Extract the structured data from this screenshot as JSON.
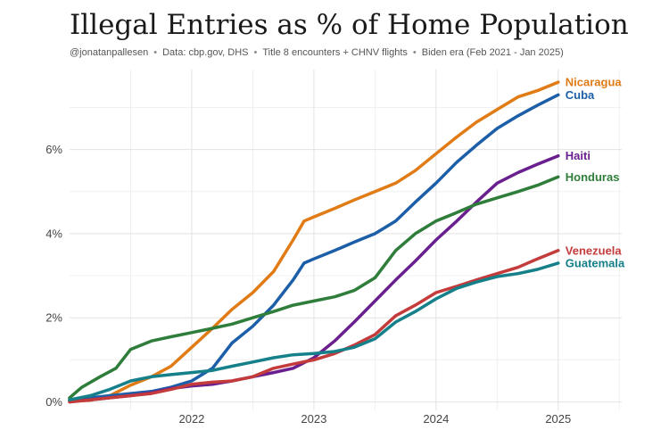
{
  "title": "Illegal Entries as % of Home Population",
  "subtitle": {
    "author": "@jonatanpallesen",
    "source": "Data: cbp.gov, DHS",
    "method": "Title 8 encounters + CHNV flights",
    "period": "Biden era (Feb 2021 - Jan 2025)"
  },
  "chart_data": {
    "type": "line",
    "xlim": [
      2021.0,
      2025.52
    ],
    "ylim": [
      -0.2,
      7.9
    ],
    "x_ticks": [
      {
        "value": 2022.0,
        "label": "2022"
      },
      {
        "value": 2023.0,
        "label": "2023"
      },
      {
        "value": 2024.0,
        "label": "2024"
      },
      {
        "value": 2025.0,
        "label": "2025"
      }
    ],
    "y_ticks": [
      {
        "value": 0,
        "label": "0%"
      },
      {
        "value": 2,
        "label": "2%"
      },
      {
        "value": 4,
        "label": "4%"
      },
      {
        "value": 6,
        "label": "6%"
      }
    ],
    "grid": true,
    "legend": "end-of-line labels",
    "series": [
      {
        "name": "Nicaragua",
        "color": "#e07b16",
        "points": [
          [
            2021.0,
            0.02
          ],
          [
            2021.17,
            0.04
          ],
          [
            2021.33,
            0.15
          ],
          [
            2021.5,
            0.4
          ],
          [
            2021.67,
            0.6
          ],
          [
            2021.83,
            0.85
          ],
          [
            2022.0,
            1.3
          ],
          [
            2022.17,
            1.75
          ],
          [
            2022.33,
            2.2
          ],
          [
            2022.5,
            2.6
          ],
          [
            2022.67,
            3.1
          ],
          [
            2022.83,
            3.85
          ],
          [
            2022.92,
            4.3
          ],
          [
            2023.0,
            4.4
          ],
          [
            2023.17,
            4.6
          ],
          [
            2023.33,
            4.8
          ],
          [
            2023.5,
            5.0
          ],
          [
            2023.67,
            5.2
          ],
          [
            2023.83,
            5.5
          ],
          [
            2024.0,
            5.9
          ],
          [
            2024.17,
            6.3
          ],
          [
            2024.33,
            6.65
          ],
          [
            2024.5,
            6.95
          ],
          [
            2024.67,
            7.25
          ],
          [
            2024.83,
            7.4
          ],
          [
            2025.0,
            7.6
          ]
        ]
      },
      {
        "name": "Cuba",
        "color": "#1c5fa8",
        "points": [
          [
            2021.0,
            0.05
          ],
          [
            2021.17,
            0.1
          ],
          [
            2021.33,
            0.15
          ],
          [
            2021.5,
            0.2
          ],
          [
            2021.67,
            0.25
          ],
          [
            2021.83,
            0.35
          ],
          [
            2022.0,
            0.5
          ],
          [
            2022.17,
            0.8
          ],
          [
            2022.33,
            1.4
          ],
          [
            2022.5,
            1.8
          ],
          [
            2022.67,
            2.3
          ],
          [
            2022.83,
            2.9
          ],
          [
            2022.92,
            3.3
          ],
          [
            2023.0,
            3.4
          ],
          [
            2023.17,
            3.6
          ],
          [
            2023.33,
            3.8
          ],
          [
            2023.5,
            4.0
          ],
          [
            2023.67,
            4.3
          ],
          [
            2023.83,
            4.75
          ],
          [
            2024.0,
            5.2
          ],
          [
            2024.17,
            5.7
          ],
          [
            2024.33,
            6.1
          ],
          [
            2024.5,
            6.5
          ],
          [
            2024.67,
            6.8
          ],
          [
            2024.83,
            7.05
          ],
          [
            2025.0,
            7.3
          ]
        ]
      },
      {
        "name": "Haiti",
        "color": "#6a1f8f",
        "points": [
          [
            2021.0,
            0.02
          ],
          [
            2021.17,
            0.05
          ],
          [
            2021.33,
            0.1
          ],
          [
            2021.5,
            0.15
          ],
          [
            2021.67,
            0.22
          ],
          [
            2021.83,
            0.32
          ],
          [
            2022.0,
            0.38
          ],
          [
            2022.17,
            0.42
          ],
          [
            2022.33,
            0.5
          ],
          [
            2022.5,
            0.6
          ],
          [
            2022.67,
            0.7
          ],
          [
            2022.83,
            0.8
          ],
          [
            2023.0,
            1.05
          ],
          [
            2023.17,
            1.45
          ],
          [
            2023.33,
            1.9
          ],
          [
            2023.5,
            2.4
          ],
          [
            2023.67,
            2.9
          ],
          [
            2023.83,
            3.35
          ],
          [
            2024.0,
            3.85
          ],
          [
            2024.17,
            4.3
          ],
          [
            2024.33,
            4.75
          ],
          [
            2024.5,
            5.2
          ],
          [
            2024.67,
            5.45
          ],
          [
            2024.83,
            5.65
          ],
          [
            2025.0,
            5.85
          ]
        ]
      },
      {
        "name": "Honduras",
        "color": "#2f7d3a",
        "points": [
          [
            2021.0,
            0.1
          ],
          [
            2021.1,
            0.35
          ],
          [
            2021.25,
            0.6
          ],
          [
            2021.38,
            0.8
          ],
          [
            2021.5,
            1.25
          ],
          [
            2021.67,
            1.45
          ],
          [
            2021.83,
            1.55
          ],
          [
            2022.0,
            1.65
          ],
          [
            2022.17,
            1.75
          ],
          [
            2022.33,
            1.85
          ],
          [
            2022.5,
            2.0
          ],
          [
            2022.67,
            2.15
          ],
          [
            2022.83,
            2.3
          ],
          [
            2023.0,
            2.4
          ],
          [
            2023.17,
            2.5
          ],
          [
            2023.33,
            2.65
          ],
          [
            2023.5,
            2.95
          ],
          [
            2023.67,
            3.6
          ],
          [
            2023.83,
            4.0
          ],
          [
            2024.0,
            4.3
          ],
          [
            2024.17,
            4.5
          ],
          [
            2024.33,
            4.7
          ],
          [
            2024.5,
            4.85
          ],
          [
            2024.67,
            5.0
          ],
          [
            2024.83,
            5.15
          ],
          [
            2025.0,
            5.35
          ]
        ]
      },
      {
        "name": "Venezuela",
        "color": "#c33b3b",
        "points": [
          [
            2021.0,
            0.0
          ],
          [
            2021.17,
            0.05
          ],
          [
            2021.33,
            0.1
          ],
          [
            2021.5,
            0.15
          ],
          [
            2021.67,
            0.2
          ],
          [
            2021.83,
            0.3
          ],
          [
            2022.0,
            0.42
          ],
          [
            2022.17,
            0.47
          ],
          [
            2022.33,
            0.5
          ],
          [
            2022.5,
            0.6
          ],
          [
            2022.67,
            0.8
          ],
          [
            2022.83,
            0.9
          ],
          [
            2023.0,
            1.0
          ],
          [
            2023.17,
            1.15
          ],
          [
            2023.33,
            1.35
          ],
          [
            2023.5,
            1.6
          ],
          [
            2023.67,
            2.05
          ],
          [
            2023.83,
            2.3
          ],
          [
            2024.0,
            2.6
          ],
          [
            2024.17,
            2.75
          ],
          [
            2024.33,
            2.9
          ],
          [
            2024.5,
            3.05
          ],
          [
            2024.67,
            3.2
          ],
          [
            2024.83,
            3.4
          ],
          [
            2025.0,
            3.6
          ]
        ]
      },
      {
        "name": "Guatemala",
        "color": "#16808a",
        "points": [
          [
            2021.0,
            0.05
          ],
          [
            2021.17,
            0.15
          ],
          [
            2021.33,
            0.3
          ],
          [
            2021.5,
            0.5
          ],
          [
            2021.67,
            0.6
          ],
          [
            2021.83,
            0.65
          ],
          [
            2022.0,
            0.7
          ],
          [
            2022.17,
            0.75
          ],
          [
            2022.33,
            0.85
          ],
          [
            2022.5,
            0.95
          ],
          [
            2022.67,
            1.05
          ],
          [
            2022.83,
            1.12
          ],
          [
            2023.0,
            1.15
          ],
          [
            2023.17,
            1.2
          ],
          [
            2023.33,
            1.3
          ],
          [
            2023.5,
            1.5
          ],
          [
            2023.67,
            1.9
          ],
          [
            2023.83,
            2.15
          ],
          [
            2024.0,
            2.45
          ],
          [
            2024.17,
            2.7
          ],
          [
            2024.33,
            2.85
          ],
          [
            2024.5,
            2.98
          ],
          [
            2024.67,
            3.05
          ],
          [
            2024.83,
            3.15
          ],
          [
            2025.0,
            3.3
          ]
        ]
      }
    ]
  }
}
